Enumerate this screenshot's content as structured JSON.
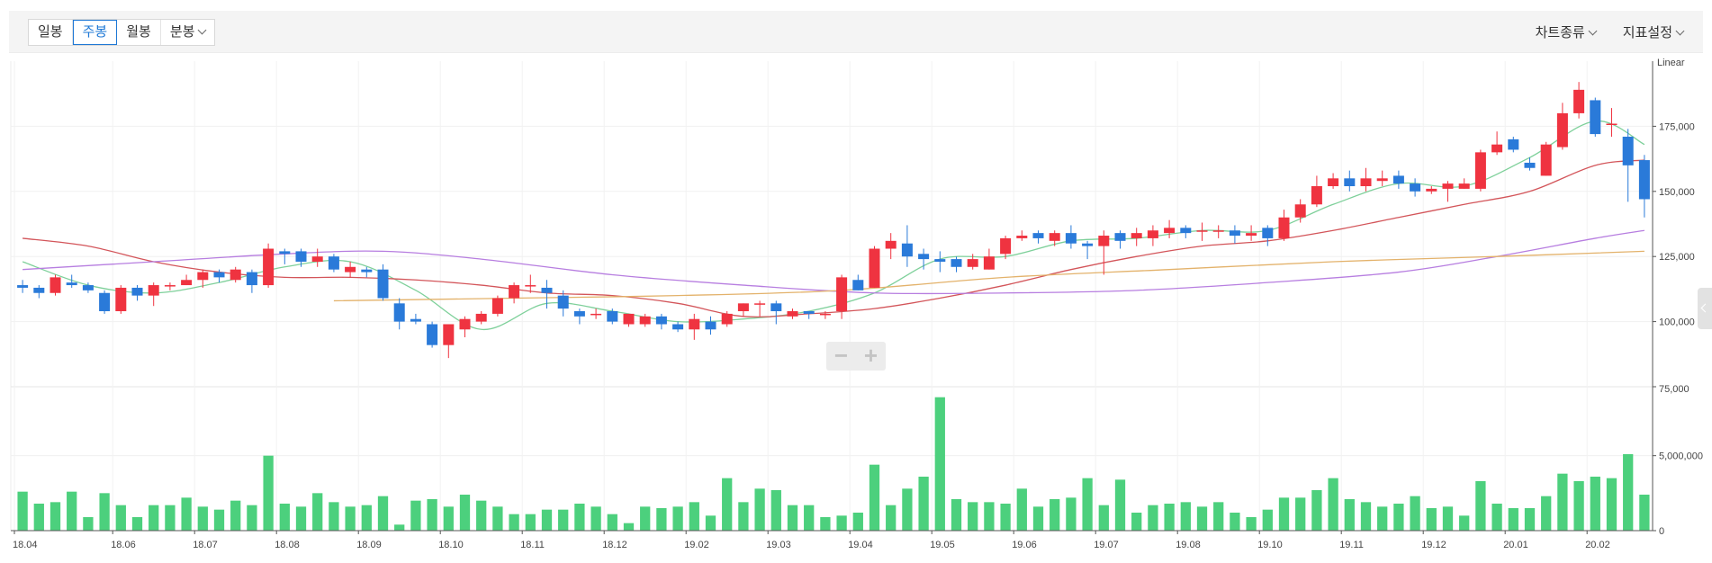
{
  "toolbar": {
    "periods": [
      "일봉",
      "주봉",
      "월봉",
      "분봉"
    ],
    "active_period": "주봉",
    "chart_type_label": "차트종류",
    "indicator_label": "지표설정"
  },
  "zoom": {
    "minus_label": "−",
    "plus_label": "+"
  },
  "colors": {
    "up": "#ef3340",
    "down": "#2a7ad9",
    "volume": "#4cd07d",
    "ma5": "#7ed09a",
    "ma20": "#d3555a",
    "ma60": "#b77ee0",
    "ma120": "#e3b26b"
  },
  "chart_data": {
    "type": "candlestick",
    "scale_label": "Linear",
    "price_ticks": [
      75000,
      100000,
      125000,
      150000,
      175000
    ],
    "price_tick_labels": [
      "75,000",
      "100,000",
      "125,000",
      "150,000",
      "175,000"
    ],
    "ylim": [
      75000,
      200000
    ],
    "volume_ticks": [
      0,
      5000000
    ],
    "volume_tick_labels": [
      "0",
      "5,000,000"
    ],
    "volume_ylim": [
      0,
      9000000
    ],
    "x_labels": [
      {
        "label": "18.04",
        "index": 0
      },
      {
        "label": "18.06",
        "index": 6
      },
      {
        "label": "18.07",
        "index": 11
      },
      {
        "label": "18.08",
        "index": 16
      },
      {
        "label": "18.09",
        "index": 21
      },
      {
        "label": "18.10",
        "index": 26
      },
      {
        "label": "18.11",
        "index": 31
      },
      {
        "label": "18.12",
        "index": 36
      },
      {
        "label": "19.02",
        "index": 41
      },
      {
        "label": "19.03",
        "index": 46
      },
      {
        "label": "19.04",
        "index": 51
      },
      {
        "label": "19.05",
        "index": 56
      },
      {
        "label": "19.06",
        "index": 61
      },
      {
        "label": "19.07",
        "index": 66
      },
      {
        "label": "19.08",
        "index": 71
      },
      {
        "label": "19.10",
        "index": 76
      },
      {
        "label": "19.11",
        "index": 81
      },
      {
        "label": "19.12",
        "index": 86
      },
      {
        "label": "20.01",
        "index": 91
      },
      {
        "label": "20.02",
        "index": 96
      }
    ],
    "candles": [
      [
        114000,
        113000,
        116000,
        111000
      ],
      [
        113000,
        111000,
        114000,
        109000
      ],
      [
        111000,
        117000,
        118000,
        110000
      ],
      [
        115000,
        114000,
        118000,
        113000
      ],
      [
        114000,
        112000,
        115000,
        111000
      ],
      [
        111000,
        104000,
        112000,
        103000
      ],
      [
        104000,
        113000,
        114000,
        103000
      ],
      [
        113000,
        110000,
        114000,
        108000
      ],
      [
        110000,
        114000,
        115000,
        106000
      ],
      [
        114000,
        114000,
        115000,
        112000
      ],
      [
        114000,
        116000,
        118000,
        114000
      ],
      [
        116000,
        119000,
        120000,
        113000
      ],
      [
        119000,
        117000,
        120000,
        115000
      ],
      [
        116000,
        120000,
        121000,
        115000
      ],
      [
        119000,
        114000,
        120000,
        111000
      ],
      [
        114000,
        128000,
        130000,
        113000
      ],
      [
        127000,
        126000,
        128000,
        122000
      ],
      [
        127000,
        123000,
        128000,
        121000
      ],
      [
        123000,
        125000,
        128000,
        121000
      ],
      [
        125000,
        120000,
        126000,
        119000
      ],
      [
        119000,
        121000,
        123000,
        117000
      ],
      [
        120000,
        119000,
        121000,
        117000
      ],
      [
        120000,
        109000,
        122000,
        108000
      ],
      [
        107000,
        100000,
        109000,
        97000
      ],
      [
        101000,
        100000,
        103000,
        99000
      ],
      [
        99000,
        91000,
        100000,
        90000
      ],
      [
        91000,
        99000,
        99000,
        86000
      ],
      [
        97000,
        101000,
        102000,
        94000
      ],
      [
        100000,
        103000,
        104000,
        99000
      ],
      [
        103000,
        109000,
        110000,
        102000
      ],
      [
        109000,
        114000,
        115000,
        107000
      ],
      [
        114000,
        114000,
        118000,
        111000
      ],
      [
        113000,
        111000,
        116000,
        105000
      ],
      [
        110000,
        105000,
        112000,
        102000
      ],
      [
        104000,
        102000,
        105000,
        99000
      ],
      [
        103000,
        103000,
        105000,
        101000
      ],
      [
        104000,
        100000,
        105000,
        99000
      ],
      [
        99000,
        103000,
        103000,
        98000
      ],
      [
        99000,
        102000,
        103000,
        98000
      ],
      [
        102000,
        99000,
        103000,
        97000
      ],
      [
        99000,
        97000,
        100000,
        96000
      ],
      [
        97000,
        101000,
        103000,
        93000
      ],
      [
        100000,
        97000,
        102000,
        95000
      ],
      [
        99000,
        103000,
        104000,
        98000
      ],
      [
        104000,
        107000,
        107000,
        102000
      ],
      [
        107000,
        107000,
        108000,
        102000
      ],
      [
        107000,
        104000,
        108000,
        99000
      ],
      [
        102000,
        104000,
        105000,
        101000
      ],
      [
        104000,
        103000,
        104000,
        101000
      ],
      [
        103000,
        103000,
        104000,
        101000
      ],
      [
        104000,
        117000,
        118000,
        101000
      ],
      [
        116000,
        112000,
        118000,
        112000
      ],
      [
        113000,
        128000,
        129000,
        113000
      ],
      [
        128000,
        131000,
        134000,
        124000
      ],
      [
        130000,
        125000,
        137000,
        121000
      ],
      [
        126000,
        124000,
        128000,
        120000
      ],
      [
        124000,
        123000,
        127000,
        119000
      ],
      [
        124000,
        121000,
        125000,
        119000
      ],
      [
        121000,
        124000,
        126000,
        120000
      ],
      [
        120000,
        125000,
        128000,
        120000
      ],
      [
        126000,
        132000,
        133000,
        124000
      ],
      [
        132000,
        133000,
        135000,
        131000
      ],
      [
        134000,
        132000,
        135000,
        130000
      ],
      [
        131000,
        134000,
        135000,
        129000
      ],
      [
        134000,
        130000,
        137000,
        128000
      ],
      [
        130000,
        129000,
        131000,
        124000
      ],
      [
        129000,
        133000,
        135000,
        118000
      ],
      [
        134000,
        131000,
        135000,
        128000
      ],
      [
        132000,
        134000,
        136000,
        129000
      ],
      [
        132000,
        135000,
        137000,
        129000
      ],
      [
        134000,
        136000,
        139000,
        132000
      ],
      [
        136000,
        134000,
        137000,
        132000
      ],
      [
        135000,
        135000,
        138000,
        131000
      ],
      [
        135000,
        135000,
        137000,
        132000
      ],
      [
        135000,
        133000,
        137000,
        130000
      ],
      [
        133000,
        134000,
        137000,
        131000
      ],
      [
        136000,
        132000,
        137000,
        129000
      ],
      [
        132000,
        140000,
        143000,
        131000
      ],
      [
        140000,
        145000,
        147000,
        138000
      ],
      [
        145000,
        152000,
        156000,
        144000
      ],
      [
        152000,
        155000,
        157000,
        151000
      ],
      [
        155000,
        152000,
        158000,
        150000
      ],
      [
        152000,
        155000,
        159000,
        150000
      ],
      [
        154000,
        155000,
        158000,
        152000
      ],
      [
        156000,
        153000,
        158000,
        151000
      ],
      [
        153000,
        150000,
        155000,
        148000
      ],
      [
        150000,
        151000,
        152000,
        149000
      ],
      [
        151000,
        153000,
        154000,
        146000
      ],
      [
        151000,
        153000,
        155000,
        151000
      ],
      [
        151000,
        165000,
        166000,
        150000
      ],
      [
        165000,
        168000,
        173000,
        164000
      ],
      [
        170000,
        166000,
        171000,
        165000
      ],
      [
        161000,
        159000,
        163000,
        158000
      ],
      [
        156000,
        168000,
        169000,
        156000
      ],
      [
        167000,
        180000,
        184000,
        166000
      ],
      [
        180000,
        189000,
        192000,
        178000
      ],
      [
        185000,
        172000,
        186000,
        171000
      ],
      [
        176000,
        176000,
        182000,
        171000
      ],
      [
        171000,
        160000,
        174000,
        146000
      ],
      [
        162000,
        147000,
        164000,
        140000
      ]
    ],
    "volumes": [
      2600000,
      1800000,
      1900000,
      2600000,
      900000,
      2500000,
      1700000,
      900000,
      1700000,
      1700000,
      2200000,
      1600000,
      1400000,
      2000000,
      1700000,
      5000000,
      1800000,
      1600000,
      2500000,
      1900000,
      1600000,
      1700000,
      2300000,
      400000,
      2000000,
      2100000,
      1600000,
      2400000,
      2000000,
      1600000,
      1100000,
      1100000,
      1400000,
      1400000,
      1800000,
      1600000,
      1100000,
      500000,
      1600000,
      1500000,
      1600000,
      1900000,
      1000000,
      3500000,
      1900000,
      2800000,
      2700000,
      1700000,
      1700000,
      900000,
      1000000,
      1200000,
      4400000,
      1700000,
      2800000,
      3600000,
      8900000,
      2100000,
      1900000,
      1900000,
      1800000,
      2800000,
      1600000,
      2100000,
      2200000,
      3500000,
      1700000,
      3400000,
      1200000,
      1700000,
      1800000,
      1900000,
      1600000,
      1900000,
      1200000,
      900000,
      1400000,
      2200000,
      2200000,
      2700000,
      3500000,
      2100000,
      1900000,
      1600000,
      1800000,
      2300000,
      1500000,
      1600000,
      1000000,
      3300000,
      1800000,
      1500000,
      1500000,
      2300000,
      3800000,
      3300000,
      3600000,
      3500000,
      5100000,
      2400000
    ],
    "moving_averages": [
      {
        "key": "ma5",
        "points": [
          [
            0,
            123000
          ],
          [
            4,
            114000
          ],
          [
            8,
            111000
          ],
          [
            12,
            115000
          ],
          [
            16,
            121000
          ],
          [
            20,
            123000
          ],
          [
            24,
            112000
          ],
          [
            28,
            97000
          ],
          [
            32,
            107000
          ],
          [
            36,
            104000
          ],
          [
            40,
            100000
          ],
          [
            44,
            101000
          ],
          [
            48,
            104000
          ],
          [
            52,
            111000
          ],
          [
            56,
            124000
          ],
          [
            60,
            125000
          ],
          [
            64,
            131000
          ],
          [
            68,
            132000
          ],
          [
            72,
            135000
          ],
          [
            76,
            135000
          ],
          [
            80,
            145000
          ],
          [
            84,
            153000
          ],
          [
            88,
            152000
          ],
          [
            92,
            163000
          ],
          [
            96,
            177000
          ],
          [
            99,
            168000
          ]
        ]
      },
      {
        "key": "ma20",
        "points": [
          [
            0,
            132000
          ],
          [
            4,
            129000
          ],
          [
            8,
            123000
          ],
          [
            12,
            119000
          ],
          [
            16,
            117000
          ],
          [
            20,
            117000
          ],
          [
            24,
            116000
          ],
          [
            28,
            114000
          ],
          [
            32,
            111000
          ],
          [
            36,
            110000
          ],
          [
            40,
            107000
          ],
          [
            44,
            102000
          ],
          [
            48,
            103000
          ],
          [
            52,
            105000
          ],
          [
            56,
            109000
          ],
          [
            60,
            114000
          ],
          [
            64,
            120000
          ],
          [
            68,
            125000
          ],
          [
            72,
            129000
          ],
          [
            76,
            131000
          ],
          [
            80,
            135000
          ],
          [
            84,
            140000
          ],
          [
            88,
            145000
          ],
          [
            92,
            150000
          ],
          [
            96,
            160000
          ],
          [
            99,
            162000
          ]
        ]
      },
      {
        "key": "ma60",
        "points": [
          [
            0,
            120000
          ],
          [
            8,
            123000
          ],
          [
            16,
            126000
          ],
          [
            22,
            127000
          ],
          [
            28,
            124000
          ],
          [
            36,
            118000
          ],
          [
            44,
            114000
          ],
          [
            52,
            111000
          ],
          [
            60,
            111000
          ],
          [
            68,
            112000
          ],
          [
            76,
            115000
          ],
          [
            84,
            119000
          ],
          [
            90,
            125000
          ],
          [
            96,
            132000
          ],
          [
            99,
            135000
          ]
        ]
      },
      {
        "key": "ma120",
        "points": [
          [
            19,
            108000
          ],
          [
            30,
            109000
          ],
          [
            40,
            110000
          ],
          [
            50,
            112000
          ],
          [
            60,
            117000
          ],
          [
            70,
            120000
          ],
          [
            80,
            123000
          ],
          [
            90,
            125000
          ],
          [
            99,
            127000
          ]
        ]
      }
    ]
  }
}
